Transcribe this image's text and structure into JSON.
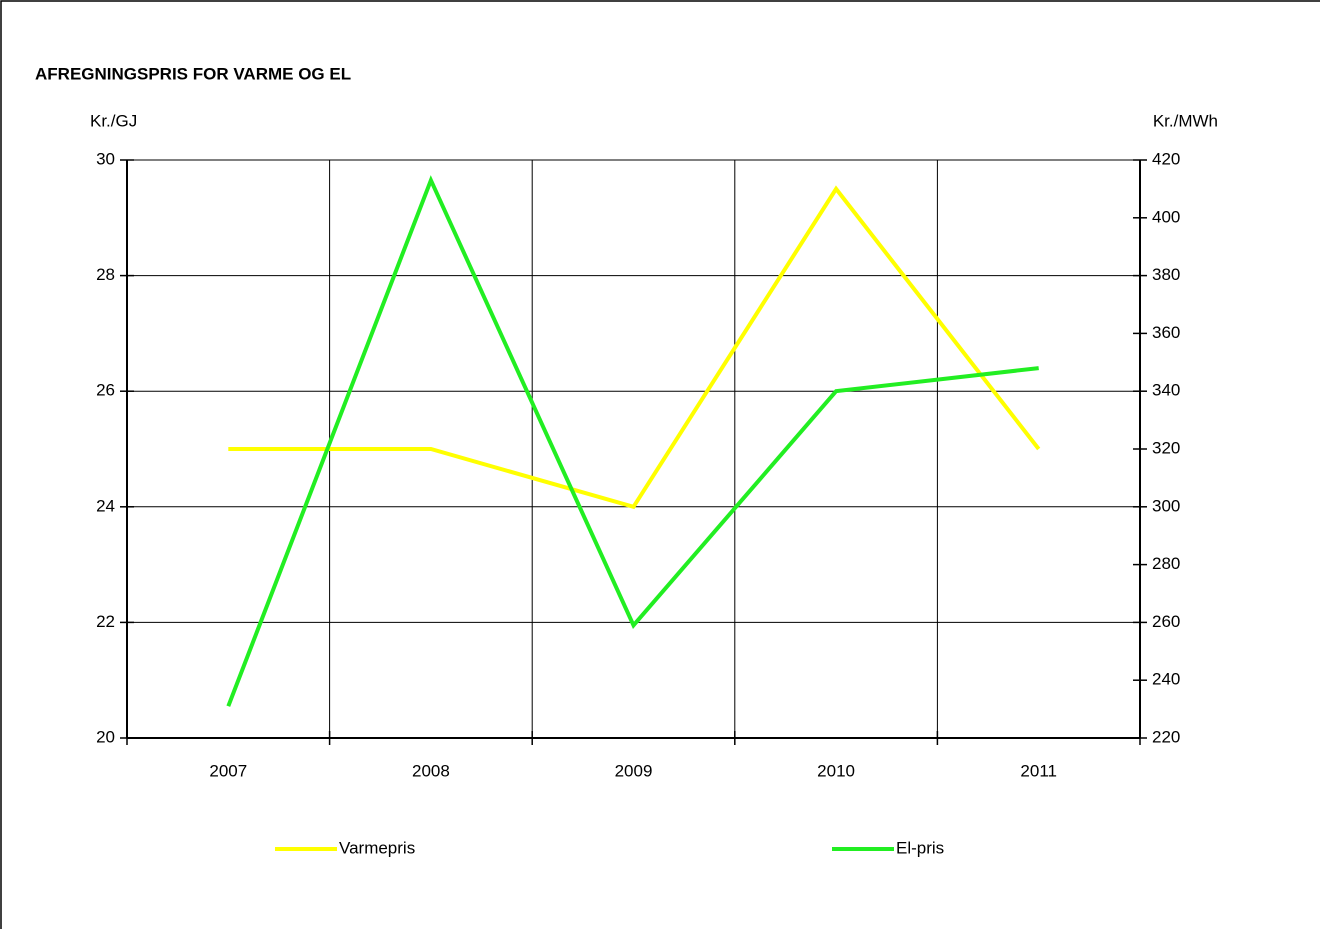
{
  "chart_data": {
    "type": "line",
    "title": "AFREGNINGSPRIS FOR VARME OG EL",
    "y_label": "Kr./GJ",
    "y2_label": "Kr./MWh",
    "categories": [
      "2007",
      "2008",
      "2009",
      "2010",
      "2011"
    ],
    "series": [
      {
        "name": "Varmepris",
        "color": "#ffff00",
        "values": [
          25,
          25,
          24,
          29.5,
          25
        ]
      },
      {
        "name": "El-pris",
        "color": "#22ee22",
        "axis": "y2",
        "values": [
          231,
          413,
          259,
          340,
          348
        ]
      }
    ],
    "ylim": [
      20,
      30
    ],
    "yticks": [
      20,
      22,
      24,
      26,
      28,
      30
    ],
    "y2lim": [
      220,
      420
    ],
    "y2ticks": [
      220,
      240,
      260,
      280,
      300,
      320,
      340,
      360,
      380,
      400,
      420
    ],
    "grid": true,
    "legend": "bottom"
  }
}
